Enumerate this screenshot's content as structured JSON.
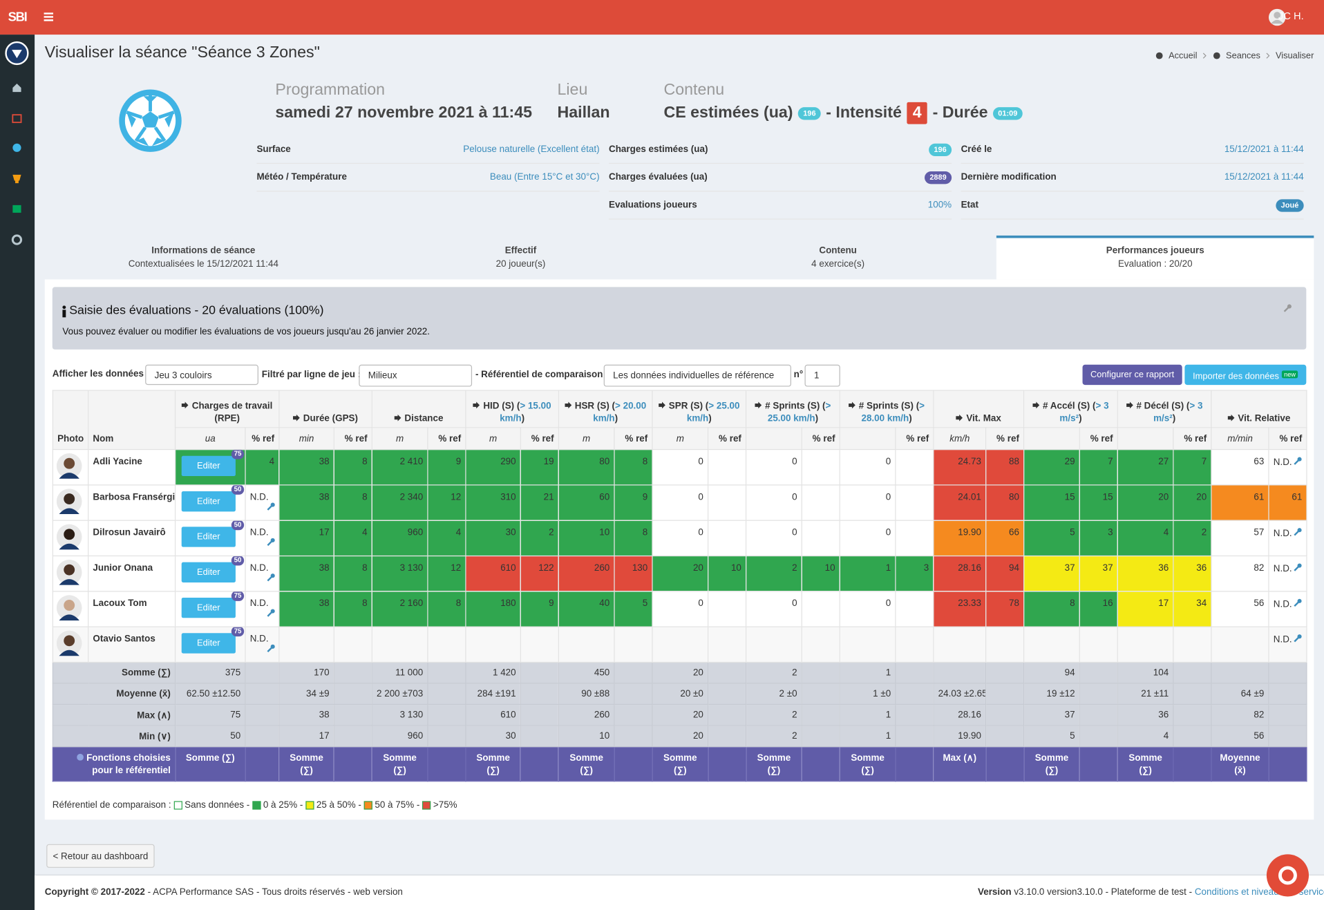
{
  "header": {
    "logo": "SBI",
    "user": "JC H."
  },
  "page": {
    "title": "Visualiser la séance \"Séance 3 Zones\"",
    "breadcrumb": [
      "Accueil",
      "Seances",
      "Visualiser"
    ]
  },
  "summary": {
    "programmation_label": "Programmation",
    "programmation": "samedi 27 novembre 2021 à 11:45",
    "lieu_label": "Lieu",
    "lieu": "Haillan",
    "contenu_label": "Contenu",
    "contenu_text": "CE estimées (ua)",
    "contenu_badge": "196",
    "intensite_label": "- Intensité",
    "intensite": "4",
    "duree_label": "- Durée",
    "duree": "01:09"
  },
  "details": [
    [
      {
        "label": "Surface",
        "value": "Pelouse naturelle (Excellent état)",
        "kind": "link"
      },
      {
        "label": "Météo / Température",
        "value": "Beau (Entre 15°C et 30°C)",
        "kind": "link"
      }
    ],
    [
      {
        "label": "Charges estimées (ua)",
        "value": "196",
        "kind": "badge",
        "color": "#4fc6d8"
      },
      {
        "label": "Charges évaluées (ua)",
        "value": "2889",
        "kind": "badge",
        "color": "#605ca8"
      },
      {
        "label": "Evaluations joueurs",
        "value": "100%",
        "kind": "link"
      }
    ],
    [
      {
        "label": "Créé le",
        "value": "15/12/2021 à 11:44",
        "kind": "link"
      },
      {
        "label": "Dernière modification",
        "value": "15/12/2021 à 11:44",
        "kind": "link"
      },
      {
        "label": "Etat",
        "value": "Joué",
        "kind": "badge",
        "color": "#3c8dbc"
      }
    ]
  ],
  "tabs": [
    {
      "title": "Informations de séance",
      "sub": "Contextualisées le 15/12/2021 11:44"
    },
    {
      "title": "Effectif",
      "sub": "20 joueur(s)"
    },
    {
      "title": "Contenu",
      "sub": "4 exercice(s)"
    },
    {
      "title": "Performances joueurs",
      "sub": "Evaluation : 20/20",
      "active": true
    }
  ],
  "alert": {
    "title": "Saisie des évaluations - 20 évaluations (100%)",
    "text": "Vous pouvez évaluer ou modifier les évaluations de vos joueurs jusqu'au 26 janvier 2022."
  },
  "filters": {
    "afficher_label": "Afficher les données :",
    "afficher_value": "Jeu 3 couloirs",
    "filtre_label": "Filtré par ligne de jeu :",
    "filtre_value": "Milieux",
    "ref_label": "- Référentiel de comparaison :",
    "ref_value": "Les données individuelles de référence",
    "n_label": "n°",
    "n_value": "1",
    "configure": "Configurer ce rapport",
    "import": "Importer des données",
    "new": "new"
  },
  "table": {
    "photo_label": "Photo",
    "name_label": "Nom",
    "pct_label": "% ref",
    "edit_label": "Editer",
    "groups": [
      {
        "label": "Charges de travail (RPE)",
        "unit": "ua"
      },
      {
        "label": "Durée (GPS)",
        "unit": "min"
      },
      {
        "label": "Distance",
        "unit": "m"
      },
      {
        "label": "HID (S) (",
        "threshold": "> 15.00 km/h",
        "close": ")",
        "unit": "m"
      },
      {
        "label": "HSR (S) (",
        "threshold": "> 20.00 km/h",
        "close": ")",
        "unit": "m"
      },
      {
        "label": "SPR (S) (",
        "threshold": "> 25.00 km/h",
        "close": ")",
        "unit": "m"
      },
      {
        "label": "# Sprints (S) (",
        "threshold": "> 25.00 km/h",
        "close": ")"
      },
      {
        "label": "# Sprints (S) (",
        "threshold": "> 28.00 km/h",
        "close": ")"
      },
      {
        "label": "Vit. Max",
        "unit": "km/h"
      },
      {
        "label": "# Accél (S) (",
        "threshold": "> 3 m/s²",
        "close": ")"
      },
      {
        "label": "# Décél (S) (",
        "threshold": "> 3 m/s²",
        "close": ")"
      },
      {
        "label": "Vit. Relative",
        "unit": "m/min"
      }
    ],
    "rows": [
      {
        "name": "Adli Yacine",
        "badge": 75,
        "charge_pct": 4,
        "charge_color": "#30a64f",
        "metrics": [
          [
            38,
            8,
            "#30a64f"
          ],
          [
            "2 410",
            9,
            "#30a64f"
          ],
          [
            290,
            19,
            "#30a64f"
          ],
          [
            80,
            8,
            "#30a64f"
          ],
          [
            0,
            null,
            null
          ],
          [
            0,
            null,
            null
          ],
          [
            0,
            null,
            null
          ],
          [
            24.73,
            88,
            "#e04a3b"
          ],
          [
            29,
            7,
            "#30a64f"
          ],
          [
            27,
            7,
            "#30a64f"
          ],
          [
            63,
            "N.D.",
            null
          ]
        ]
      },
      {
        "name": "Barbosa Fransérgio",
        "badge": 50,
        "charge_pct": "N.D.",
        "metrics": [
          [
            38,
            8,
            "#30a64f"
          ],
          [
            "2 340",
            12,
            "#30a64f"
          ],
          [
            310,
            21,
            "#30a64f"
          ],
          [
            60,
            9,
            "#30a64f"
          ],
          [
            0,
            null,
            null
          ],
          [
            0,
            null,
            null
          ],
          [
            0,
            null,
            null
          ],
          [
            24.01,
            80,
            "#e04a3b"
          ],
          [
            15,
            15,
            "#30a64f"
          ],
          [
            20,
            20,
            "#30a64f"
          ],
          [
            61,
            61,
            "#f58a1f"
          ]
        ]
      },
      {
        "name": "Dilrosun Javairô",
        "badge": 50,
        "charge_pct": "N.D.",
        "metrics": [
          [
            17,
            4,
            "#30a64f"
          ],
          [
            960,
            4,
            "#30a64f"
          ],
          [
            30,
            2,
            "#30a64f"
          ],
          [
            10,
            8,
            "#30a64f"
          ],
          [
            0,
            null,
            null
          ],
          [
            0,
            null,
            null
          ],
          [
            0,
            null,
            null
          ],
          [
            "19.90",
            66,
            "#f58a1f"
          ],
          [
            5,
            3,
            "#30a64f"
          ],
          [
            4,
            2,
            "#30a64f"
          ],
          [
            57,
            "N.D.",
            null
          ]
        ]
      },
      {
        "name": "Junior Onana",
        "badge": 50,
        "charge_pct": "N.D.",
        "metrics": [
          [
            38,
            8,
            "#30a64f"
          ],
          [
            "3 130",
            12,
            "#30a64f"
          ],
          [
            610,
            122,
            "#e04a3b"
          ],
          [
            260,
            130,
            "#e04a3b"
          ],
          [
            20,
            10,
            "#30a64f"
          ],
          [
            2,
            10,
            "#30a64f"
          ],
          [
            1,
            3,
            "#30a64f"
          ],
          [
            28.16,
            94,
            "#e04a3b"
          ],
          [
            37,
            37,
            "#f4ea14"
          ],
          [
            36,
            36,
            "#f4ea14"
          ],
          [
            82,
            "N.D.",
            null
          ]
        ]
      },
      {
        "name": "Lacoux Tom",
        "badge": 75,
        "charge_pct": "N.D.",
        "metrics": [
          [
            38,
            8,
            "#30a64f"
          ],
          [
            "2 160",
            8,
            "#30a64f"
          ],
          [
            180,
            9,
            "#30a64f"
          ],
          [
            40,
            5,
            "#30a64f"
          ],
          [
            0,
            null,
            null
          ],
          [
            0,
            null,
            null
          ],
          [
            0,
            null,
            null
          ],
          [
            23.33,
            78,
            "#e04a3b"
          ],
          [
            8,
            16,
            "#30a64f"
          ],
          [
            17,
            34,
            "#f4ea14"
          ],
          [
            56,
            "N.D.",
            null
          ]
        ]
      },
      {
        "name": "Otavio Santos",
        "badge": 75,
        "charge_pct": "N.D.",
        "metrics": [
          [
            null,
            null,
            null
          ],
          [
            null,
            null,
            null
          ],
          [
            null,
            null,
            null
          ],
          [
            null,
            null,
            null
          ],
          [
            null,
            null,
            null
          ],
          [
            null,
            null,
            null
          ],
          [
            null,
            null,
            null
          ],
          [
            null,
            null,
            null
          ],
          [
            null,
            null,
            null
          ],
          [
            null,
            null,
            null
          ],
          [
            null,
            "N.D.",
            null
          ]
        ]
      }
    ],
    "stats": [
      {
        "label": "Somme (∑)",
        "values": [
          375,
          170,
          "11 000",
          "1 420",
          450,
          20,
          2,
          1,
          null,
          94,
          104,
          null
        ]
      },
      {
        "label": "Moyenne (x̄)",
        "values": [
          "62.50 ±12.50",
          "34 ±9",
          "2 200 ±703",
          "284 ±191",
          "90 ±88",
          "20 ±0",
          "2 ±0",
          "1 ±0",
          "24.03 ±2.65",
          "19 ±12",
          "21 ±11",
          "64 ±9"
        ]
      },
      {
        "label": "Max (∧)",
        "values": [
          75,
          38,
          "3 130",
          610,
          260,
          20,
          2,
          1,
          28.16,
          37,
          36,
          82
        ]
      },
      {
        "label": "Min (∨)",
        "values": [
          50,
          17,
          960,
          30,
          10,
          20,
          2,
          1,
          "19.90",
          5,
          4,
          56
        ]
      }
    ],
    "functions": {
      "label": "Fonctions choisies pour le référentiel",
      "values": [
        "Somme (∑)",
        "Somme (∑)",
        "Somme (∑)",
        "Somme (∑)",
        "Somme (∑)",
        "Somme (∑)",
        "Somme (∑)",
        "Somme (∑)",
        "Max (∧)",
        "Somme (∑)",
        "Somme (∑)",
        "Moyenne (x̄)"
      ]
    }
  },
  "legend": {
    "label": "Référentiel de comparaison :",
    "separator": "-",
    "items": [
      {
        "label": "Sans données",
        "color": "#ffffff"
      },
      {
        "label": "0 à 25%",
        "color": "#30a64f"
      },
      {
        "label": "25 à 50%",
        "color": "#f4ea14"
      },
      {
        "label": "50 à 75%",
        "color": "#f58a1f"
      },
      {
        "label": ">75%",
        "color": "#e04a3b"
      }
    ]
  },
  "back": "< Retour au dashboard",
  "footer": {
    "copyright": "Copyright © 2017-2022",
    "company": "- ACPA Performance SAS - Tous droits réservés - web version",
    "version_label": "Version",
    "version": "v3.10.0 version3.10.0 - Plateforme de test -",
    "link": "Conditions et niveaux de service"
  }
}
